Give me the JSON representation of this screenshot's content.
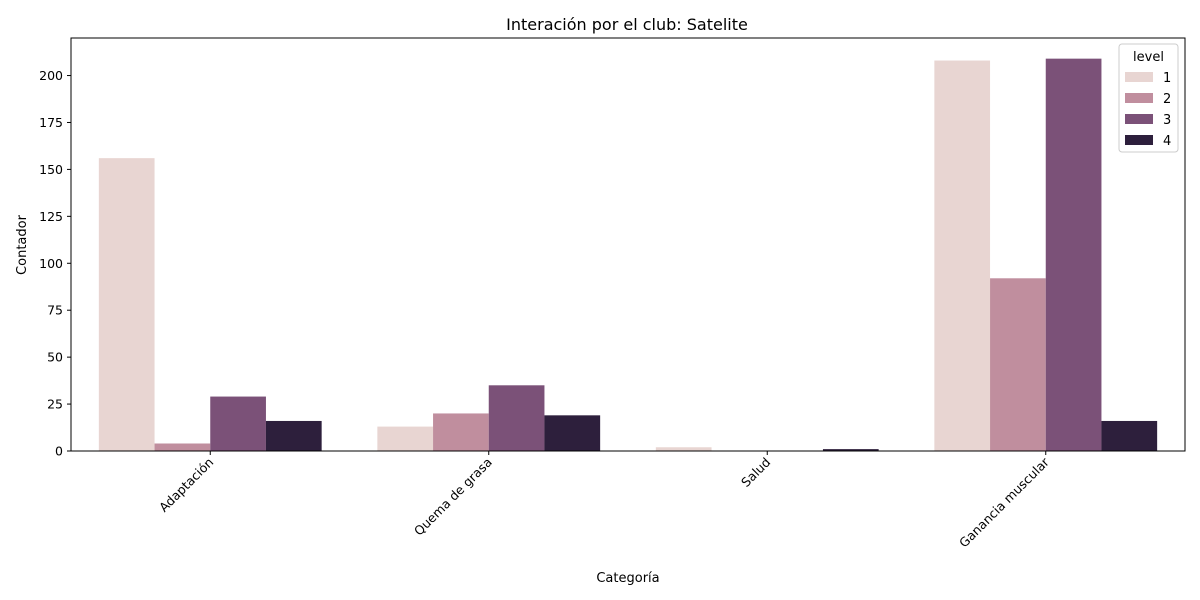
{
  "chart_data": {
    "type": "bar",
    "title": "Interación por el club: Satelite",
    "xlabel": "Categoría",
    "ylabel": "Contador",
    "categories": [
      "Adaptación",
      "Quema de grasa",
      "Salud",
      "Ganancia muscular"
    ],
    "series": [
      {
        "name": "1",
        "color": "#e8d5d2",
        "values": [
          156,
          13,
          2,
          208
        ]
      },
      {
        "name": "2",
        "color": "#c08e9e",
        "values": [
          4,
          20,
          0,
          92
        ]
      },
      {
        "name": "3",
        "color": "#7b5178",
        "values": [
          29,
          35,
          0,
          209
        ]
      },
      {
        "name": "4",
        "color": "#2d1f3c",
        "values": [
          16,
          19,
          1,
          16
        ]
      }
    ],
    "ylim": [
      0,
      220
    ],
    "yticks": [
      0,
      25,
      50,
      75,
      100,
      125,
      150,
      175,
      200
    ],
    "legend": {
      "title": "level",
      "position": "top-right"
    },
    "grid": false
  }
}
